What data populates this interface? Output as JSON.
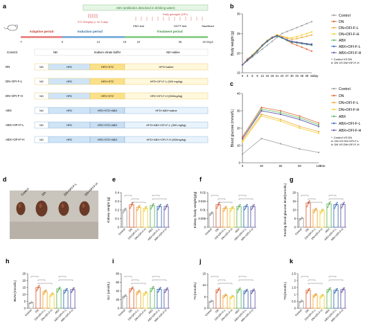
{
  "panel_letters": [
    "a",
    "b",
    "c",
    "d",
    "e",
    "f",
    "g",
    "h",
    "i",
    "j",
    "k"
  ],
  "timeline": {
    "abx_banner": "ABX (antibiotics dissolved in drinking water)",
    "gavage": "Daily gavaged (OFI)",
    "stz": "STZ 50mg/kg i.p. for 5 days",
    "periods": [
      "Adaptive period",
      "Induction period",
      "Treatment period"
    ],
    "ticks": [
      "-7",
      "0",
      "14",
      "19",
      "22",
      "35",
      "42 Days"
    ],
    "events": [
      "FBG test",
      "OGTT test",
      "Sacrificed"
    ],
    "header_cells": [
      "ND",
      "Sodium citrate buffer",
      "ND+saline"
    ],
    "rows": [
      {
        "group": "Control",
        "cells": []
      },
      {
        "group": "DN",
        "cells": [
          "ND",
          "HFD",
          "HFD+STZ",
          "HFD+saline"
        ]
      },
      {
        "group": "DN+OFI-F-L",
        "cells": [
          "ND",
          "HFD",
          "HFD+STZ",
          "HFD+OFI-F-L (300 mg/kg)"
        ]
      },
      {
        "group": "DN+OFI-F-H",
        "cells": [
          "ND",
          "HFD",
          "HFD+STZ",
          "HFD+OFI-F-H (500mg/kg)"
        ]
      },
      {
        "group": "ABX",
        "cells": [
          "ND",
          "HFD",
          "HFD+STZ+ABX",
          "HFD+ABX+saline"
        ]
      },
      {
        "group": "ABX+OFI-F-L",
        "cells": [
          "ND",
          "HFD",
          "HFD+STZ+ABX",
          "HFD+ABX+OFI-F-L (300 mg/kg)"
        ]
      },
      {
        "group": "ABX+OFI-F-H",
        "cells": [
          "ND",
          "HFD",
          "HFD+STZ+ABX",
          "HFD+ABX+OFI-F-H (500mg/kg)"
        ]
      }
    ]
  },
  "legend_groups": [
    {
      "name": "Control",
      "color": "#9e9e9e"
    },
    {
      "name": "DN",
      "color": "#e0663a"
    },
    {
      "name": "DN+OFI-F-L",
      "color": "#f0a832"
    },
    {
      "name": "DN+OFI-F-H",
      "color": "#f2d233"
    },
    {
      "name": "ABX",
      "color": "#62b85f"
    },
    {
      "name": "ABX+OFI-F-L",
      "color": "#3c6fb5"
    },
    {
      "name": "ABX+OFI-F-H",
      "color": "#6a5ca8"
    }
  ],
  "panel_b_notes": [
    "*: Control VS DN",
    "#: DN VS DN+OFI-F-H"
  ],
  "panel_c_notes": [
    "*: Control VS DN",
    "&: DN VS DN+OFI-F-L",
    "#: DN VS DN+OFI-F-H"
  ],
  "kidneys": {
    "labels": [
      "Control",
      "DN",
      "DN+OFI-F-L",
      "DN+OFI-F-H"
    ]
  },
  "chart_data": [
    {
      "id": "b",
      "type": "line",
      "ylabel": "Body weight (g)",
      "xlabel": "day",
      "x": [
        0,
        3,
        6,
        9,
        12,
        15,
        18,
        21,
        24,
        27,
        30,
        33,
        36,
        39,
        42
      ],
      "ylim": [
        15,
        30
      ],
      "yticks": [
        15,
        20,
        25,
        30
      ],
      "series": [
        {
          "name": "Control",
          "values": [
            17,
            18,
            19,
            20,
            21,
            22,
            23,
            24,
            25,
            25.5,
            26,
            26.5,
            27,
            27.5,
            28
          ]
        },
        {
          "name": "DN",
          "values": [
            17,
            18.5,
            19.5,
            20.5,
            22,
            23,
            24,
            24.5,
            24,
            23.2,
            22.5,
            22,
            21.5,
            21,
            20.5
          ]
        },
        {
          "name": "DN+OFI-F-L",
          "values": [
            17,
            18.3,
            19.4,
            20.6,
            22,
            23.2,
            24,
            24.6,
            24.2,
            23.8,
            23.5,
            23.7,
            24,
            24.3,
            24.6
          ]
        },
        {
          "name": "DN+OFI-F-H",
          "values": [
            17,
            18.2,
            19.6,
            20.8,
            22.1,
            23.3,
            24.1,
            24.7,
            24.3,
            24,
            23.9,
            24.2,
            24.6,
            25,
            25.4
          ]
        },
        {
          "name": "ABX",
          "values": [
            17,
            18.1,
            19.2,
            20.4,
            21.8,
            22.9,
            23.8,
            24.3,
            23.8,
            23.2,
            22.8,
            22.6,
            22.4,
            22.2,
            22
          ]
        },
        {
          "name": "ABX+OFI-F-L",
          "values": [
            17,
            18.2,
            19.3,
            20.5,
            21.9,
            23,
            23.9,
            24.4,
            23.9,
            23.3,
            22.9,
            22.7,
            22.5,
            22.3,
            22.1
          ]
        },
        {
          "name": "ABX+OFI-F-H",
          "values": [
            17,
            18.3,
            19.4,
            20.6,
            22,
            23.1,
            24,
            24.5,
            24,
            23.4,
            23,
            22.8,
            22.6,
            22.4,
            22.3
          ]
        }
      ]
    },
    {
      "id": "c",
      "type": "line",
      "ylabel": "Blood glucose (mmol/L)",
      "xlabel": "min",
      "x": [
        0,
        30,
        60,
        90,
        120
      ],
      "ylim": [
        0,
        40
      ],
      "yticks": [
        0,
        10,
        20,
        30,
        40
      ],
      "series": [
        {
          "name": "Control",
          "values": [
            5,
            14,
            11,
            8,
            6
          ]
        },
        {
          "name": "DN",
          "values": [
            15,
            32,
            30,
            27,
            23
          ]
        },
        {
          "name": "DN+OFI-F-L",
          "values": [
            13,
            28,
            25,
            21,
            18
          ]
        },
        {
          "name": "DN+OFI-F-H",
          "values": [
            12,
            27,
            24,
            20,
            17
          ]
        },
        {
          "name": "ABX",
          "values": [
            14,
            31,
            29,
            26,
            22
          ]
        },
        {
          "name": "ABX+OFI-F-L",
          "values": [
            14,
            30,
            28,
            25,
            21
          ]
        },
        {
          "name": "ABX+OFI-F-H",
          "values": [
            14,
            30,
            28,
            25,
            21
          ]
        }
      ]
    },
    {
      "id": "e",
      "type": "bar",
      "ylabel": "Kidney weight (g)",
      "ylim": [
        0,
        0.4
      ],
      "yticks": [
        0.0,
        0.1,
        0.2,
        0.3,
        0.4
      ],
      "values": [
        0.2,
        0.26,
        0.23,
        0.22,
        0.25,
        0.24,
        0.24
      ]
    },
    {
      "id": "f",
      "type": "bar",
      "ylabel": "Kidney /body weight(g/g)",
      "ylim": [
        0,
        0.02
      ],
      "yticks": [
        0.0,
        0.005,
        0.01,
        0.015,
        0.02
      ],
      "values": [
        0.008,
        0.013,
        0.011,
        0.011,
        0.012,
        0.012,
        0.012
      ]
    },
    {
      "id": "g",
      "type": "bar",
      "ylabel": "Fasting blood glucose level(mmol/L)",
      "ylim": [
        0,
        20
      ],
      "yticks": [
        0,
        5,
        10,
        15,
        20
      ],
      "values": [
        5,
        14,
        10,
        9.5,
        13.5,
        13,
        13.2
      ]
    },
    {
      "id": "h",
      "type": "bar",
      "ylabel": "BUN (mmol/L)",
      "ylim": [
        0,
        25
      ],
      "yticks": [
        0,
        5,
        10,
        15,
        20,
        25
      ],
      "values": [
        4,
        15,
        12,
        10,
        14,
        13,
        13.5
      ]
    },
    {
      "id": "i",
      "type": "bar",
      "ylabel": "Scr (umol/L)",
      "ylim": [
        0,
        80
      ],
      "yticks": [
        0,
        20,
        40,
        60,
        80
      ],
      "values": [
        28,
        45,
        38,
        35,
        46,
        44,
        43
      ]
    },
    {
      "id": "j",
      "type": "bar",
      "ylabel": "TC(mmol/L)",
      "ylim": [
        0,
        15
      ],
      "yticks": [
        0,
        5,
        10,
        15
      ],
      "values": [
        3,
        8,
        5.5,
        5,
        8,
        7.5,
        7.6
      ]
    },
    {
      "id": "k",
      "type": "bar",
      "ylabel": "TG(mmol/L)",
      "ylim": [
        0,
        2.5
      ],
      "yticks": [
        0,
        0.5,
        1.0,
        1.5,
        2.0,
        2.5
      ],
      "values": [
        0.5,
        1.3,
        0.95,
        0.9,
        1.35,
        1.3,
        1.35
      ]
    }
  ]
}
